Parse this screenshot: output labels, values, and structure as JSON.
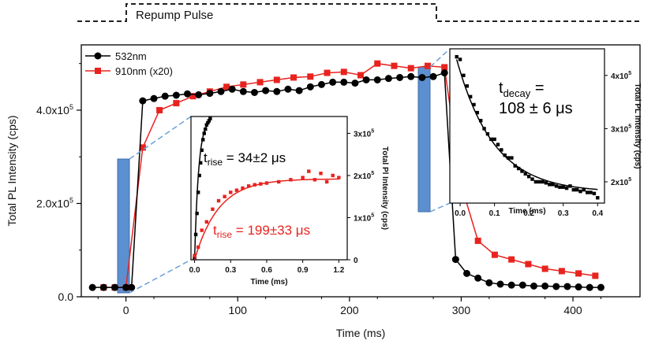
{
  "pulse_label": "Repump Pulse",
  "chart_data": [
    {
      "type": "line",
      "xlabel": "Time (ms)",
      "ylabel": "Total PL Intensity (cps)",
      "xlim": [
        -40,
        460
      ],
      "ylim": [
        0,
        5.4
      ],
      "y_unit": "x10^5 cps",
      "xticks": [
        "0",
        "100",
        "200",
        "300",
        "400"
      ],
      "yticks": [
        {
          "value": 0,
          "base": "0.0",
          "exp": ""
        },
        {
          "value": 2,
          "base": "2.0x10",
          "exp": "5"
        },
        {
          "value": 4,
          "base": "4.0x10",
          "exp": "5"
        }
      ],
      "legend_position": "top-left",
      "series": [
        {
          "name": "532nm",
          "color": "#000000",
          "marker": "circle",
          "points": [
            [
              -30,
              0.2
            ],
            [
              -20,
              0.2
            ],
            [
              -10,
              0.2
            ],
            [
              0,
              0.2
            ],
            [
              5,
              0.2
            ],
            [
              15,
              4.2
            ],
            [
              25,
              4.25
            ],
            [
              35,
              4.3
            ],
            [
              45,
              4.32
            ],
            [
              55,
              4.35
            ],
            [
              65,
              4.33
            ],
            [
              75,
              4.36
            ],
            [
              85,
              4.4
            ],
            [
              95,
              4.45
            ],
            [
              105,
              4.4
            ],
            [
              115,
              4.38
            ],
            [
              125,
              4.42
            ],
            [
              135,
              4.4
            ],
            [
              145,
              4.45
            ],
            [
              155,
              4.42
            ],
            [
              165,
              4.5
            ],
            [
              175,
              4.55
            ],
            [
              185,
              4.6
            ],
            [
              195,
              4.6
            ],
            [
              205,
              4.58
            ],
            [
              215,
              4.65
            ],
            [
              225,
              4.65
            ],
            [
              235,
              4.68
            ],
            [
              245,
              4.7
            ],
            [
              255,
              4.72
            ],
            [
              265,
              4.7
            ],
            [
              275,
              4.72
            ],
            [
              285,
              4.8
            ],
            [
              295,
              0.8
            ],
            [
              305,
              0.5
            ],
            [
              315,
              0.4
            ],
            [
              325,
              0.3
            ],
            [
              335,
              0.27
            ],
            [
              345,
              0.25
            ],
            [
              355,
              0.25
            ],
            [
              365,
              0.23
            ],
            [
              375,
              0.23
            ],
            [
              385,
              0.22
            ],
            [
              395,
              0.22
            ],
            [
              405,
              0.21
            ],
            [
              415,
              0.2
            ],
            [
              425,
              0.2
            ]
          ]
        },
        {
          "name": "910nm (x20)",
          "color": "#e8231f",
          "marker": "square",
          "points": [
            [
              -20,
              0.2
            ],
            [
              -10,
              0.2
            ],
            [
              0,
              0.2
            ],
            [
              15,
              3.2
            ],
            [
              30,
              4.0
            ],
            [
              45,
              4.15
            ],
            [
              60,
              4.3
            ],
            [
              75,
              4.4
            ],
            [
              90,
              4.5
            ],
            [
              105,
              4.55
            ],
            [
              120,
              4.6
            ],
            [
              135,
              4.65
            ],
            [
              150,
              4.7
            ],
            [
              165,
              4.72
            ],
            [
              180,
              4.8
            ],
            [
              195,
              4.82
            ],
            [
              210,
              4.75
            ],
            [
              225,
              5.0
            ],
            [
              240,
              4.95
            ],
            [
              255,
              4.9
            ],
            [
              270,
              4.95
            ],
            [
              285,
              4.92
            ],
            [
              300,
              2.4
            ],
            [
              315,
              1.2
            ],
            [
              330,
              0.9
            ],
            [
              345,
              0.8
            ],
            [
              360,
              0.7
            ],
            [
              375,
              0.6
            ],
            [
              390,
              0.55
            ],
            [
              405,
              0.5
            ],
            [
              420,
              0.45
            ]
          ]
        }
      ]
    },
    {
      "type": "scatter",
      "xlabel": "Time (ms)",
      "ylabel": "Total Pl Intensity (cps)",
      "xlim": [
        -0.03,
        1.27
      ],
      "ylim": [
        0,
        3.4
      ],
      "xticks": [
        "0.0",
        "0.3",
        "0.6",
        "0.9",
        "1.2"
      ],
      "yticks": [
        {
          "value": 0,
          "base": "0",
          "exp": ""
        },
        {
          "value": 1,
          "base": "1x10",
          "exp": "5"
        },
        {
          "value": 2,
          "base": "2x10",
          "exp": "5"
        },
        {
          "value": 3,
          "base": "3x10",
          "exp": "5"
        }
      ],
      "annotations": [
        {
          "sub": "rise",
          "value": " = 34±2 μs",
          "color": "#000000"
        },
        {
          "sub": "rise",
          "value": " = 199±33 μs",
          "color": "#e8231f"
        }
      ],
      "series": [
        {
          "color": "#000000",
          "points": [
            [
              0,
              0.05
            ],
            [
              0.01,
              0.6
            ],
            [
              0.02,
              1.1
            ],
            [
              0.03,
              1.6
            ],
            [
              0.04,
              2.0
            ],
            [
              0.05,
              2.3
            ],
            [
              0.06,
              2.6
            ],
            [
              0.07,
              2.85
            ],
            [
              0.08,
              3.0
            ],
            [
              0.09,
              3.1
            ],
            [
              0.1,
              3.2
            ],
            [
              0.11,
              3.25
            ],
            [
              0.12,
              3.3
            ],
            [
              0.13,
              3.35
            ]
          ],
          "fit": {
            "amplitude": 3.35,
            "tau_ms": 0.034
          }
        },
        {
          "color": "#e8231f",
          "points": [
            [
              0,
              0.1
            ],
            [
              0.03,
              0.3
            ],
            [
              0.06,
              0.7
            ],
            [
              0.1,
              0.9
            ],
            [
              0.15,
              1.2
            ],
            [
              0.2,
              1.4
            ],
            [
              0.25,
              1.5
            ],
            [
              0.3,
              1.6
            ],
            [
              0.35,
              1.65
            ],
            [
              0.4,
              1.7
            ],
            [
              0.45,
              1.75
            ],
            [
              0.5,
              1.78
            ],
            [
              0.55,
              1.8
            ],
            [
              0.6,
              1.82
            ],
            [
              0.7,
              1.85
            ],
            [
              0.8,
              1.9
            ],
            [
              0.9,
              1.95
            ],
            [
              0.95,
              2.1
            ],
            [
              1.0,
              1.9
            ],
            [
              1.05,
              2.05
            ],
            [
              1.1,
              1.85
            ],
            [
              1.15,
              2.0
            ],
            [
              1.2,
              1.95
            ]
          ],
          "fit": {
            "amplitude": 1.92,
            "tau_ms": 0.199
          }
        }
      ]
    },
    {
      "type": "scatter",
      "xlabel": "Time (ms)",
      "ylabel": "Total PL Intensity (cps)",
      "xlim": [
        -0.03,
        0.42
      ],
      "ylim": [
        1.6,
        4.5
      ],
      "xticks": [
        "0.0",
        "0.1",
        "0.2",
        "0.3",
        "0.4"
      ],
      "yticks": [
        {
          "value": 2,
          "base": "2x10",
          "exp": "5"
        },
        {
          "value": 3,
          "base": "3x10",
          "exp": "5"
        },
        {
          "value": 4,
          "base": "4x10",
          "exp": "5"
        }
      ],
      "annotations": [
        {
          "sub": "decay",
          "value": " =",
          "second_line": "108 ± 6 μs",
          "color": "#000000"
        }
      ],
      "series": [
        {
          "color": "#000000",
          "points": [
            [
              -0.01,
              4.35
            ],
            [
              0.0,
              4.3
            ],
            [
              0.01,
              4.0
            ],
            [
              0.02,
              3.8
            ],
            [
              0.03,
              3.6
            ],
            [
              0.04,
              3.45
            ],
            [
              0.05,
              3.3
            ],
            [
              0.06,
              3.15
            ],
            [
              0.07,
              3.0
            ],
            [
              0.08,
              2.9
            ],
            [
              0.09,
              2.8
            ],
            [
              0.1,
              2.8
            ],
            [
              0.11,
              2.7
            ],
            [
              0.12,
              2.6
            ],
            [
              0.13,
              2.5
            ],
            [
              0.14,
              2.45
            ],
            [
              0.15,
              2.45
            ],
            [
              0.16,
              2.3
            ],
            [
              0.17,
              2.25
            ],
            [
              0.18,
              2.2
            ],
            [
              0.19,
              2.15
            ],
            [
              0.2,
              2.1
            ],
            [
              0.21,
              2.05
            ],
            [
              0.22,
              2.0
            ],
            [
              0.23,
              2.0
            ],
            [
              0.24,
              2.0
            ],
            [
              0.25,
              1.98
            ],
            [
              0.26,
              1.95
            ],
            [
              0.27,
              1.95
            ],
            [
              0.28,
              1.92
            ],
            [
              0.29,
              1.9
            ],
            [
              0.3,
              1.9
            ],
            [
              0.31,
              1.88
            ],
            [
              0.32,
              1.92
            ],
            [
              0.33,
              1.85
            ],
            [
              0.34,
              1.85
            ],
            [
              0.35,
              1.82
            ],
            [
              0.36,
              1.85
            ],
            [
              0.37,
              1.8
            ],
            [
              0.38,
              1.8
            ],
            [
              0.39,
              1.78
            ],
            [
              0.4,
              1.7
            ]
          ],
          "fit": {
            "offset": 1.8,
            "amplitude": 2.5,
            "tau_ms": 0.108,
            "x0": -0.01
          }
        }
      ]
    }
  ]
}
